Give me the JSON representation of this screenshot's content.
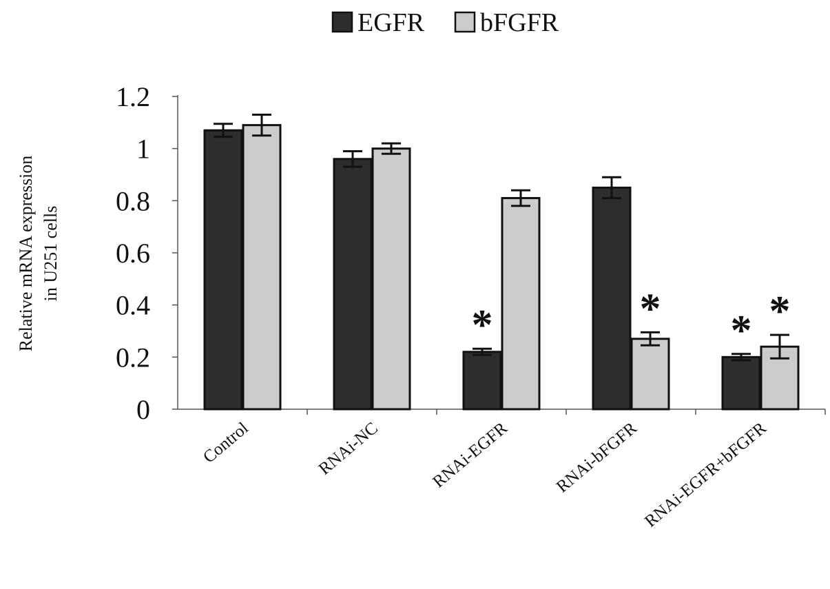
{
  "chart_data": {
    "type": "bar",
    "title": "",
    "xlabel": "",
    "ylabel": [
      "Relative mRNA expression",
      "in U251 cells"
    ],
    "ylim": [
      0,
      1.2
    ],
    "yticks": [
      "0",
      "0.2",
      "0.4",
      "0.6",
      "0.8",
      "1",
      "1.2"
    ],
    "ytick_values": [
      0,
      0.2,
      0.4,
      0.6,
      0.8,
      1,
      1.2
    ],
    "categories": [
      "Control",
      "RNAi-NC",
      "RNAi-EGFR",
      "RNAi-bFGFR",
      "RNAi-EGFR+bFGFR"
    ],
    "series": [
      {
        "name": "EGFR",
        "color": "#2d2d2d",
        "values": [
          1.07,
          0.96,
          0.22,
          0.85,
          0.2
        ],
        "errors": [
          0.025,
          0.03,
          0.012,
          0.04,
          0.012
        ],
        "significant": [
          false,
          false,
          true,
          false,
          true
        ]
      },
      {
        "name": "bFGFR",
        "color": "#cccccc",
        "values": [
          1.09,
          1.0,
          0.81,
          0.27,
          0.24
        ],
        "errors": [
          0.04,
          0.02,
          0.03,
          0.025,
          0.045
        ],
        "significant": [
          false,
          false,
          false,
          true,
          true
        ]
      }
    ],
    "significance_marker": "*",
    "legend_position": "top-center",
    "grid": false
  }
}
